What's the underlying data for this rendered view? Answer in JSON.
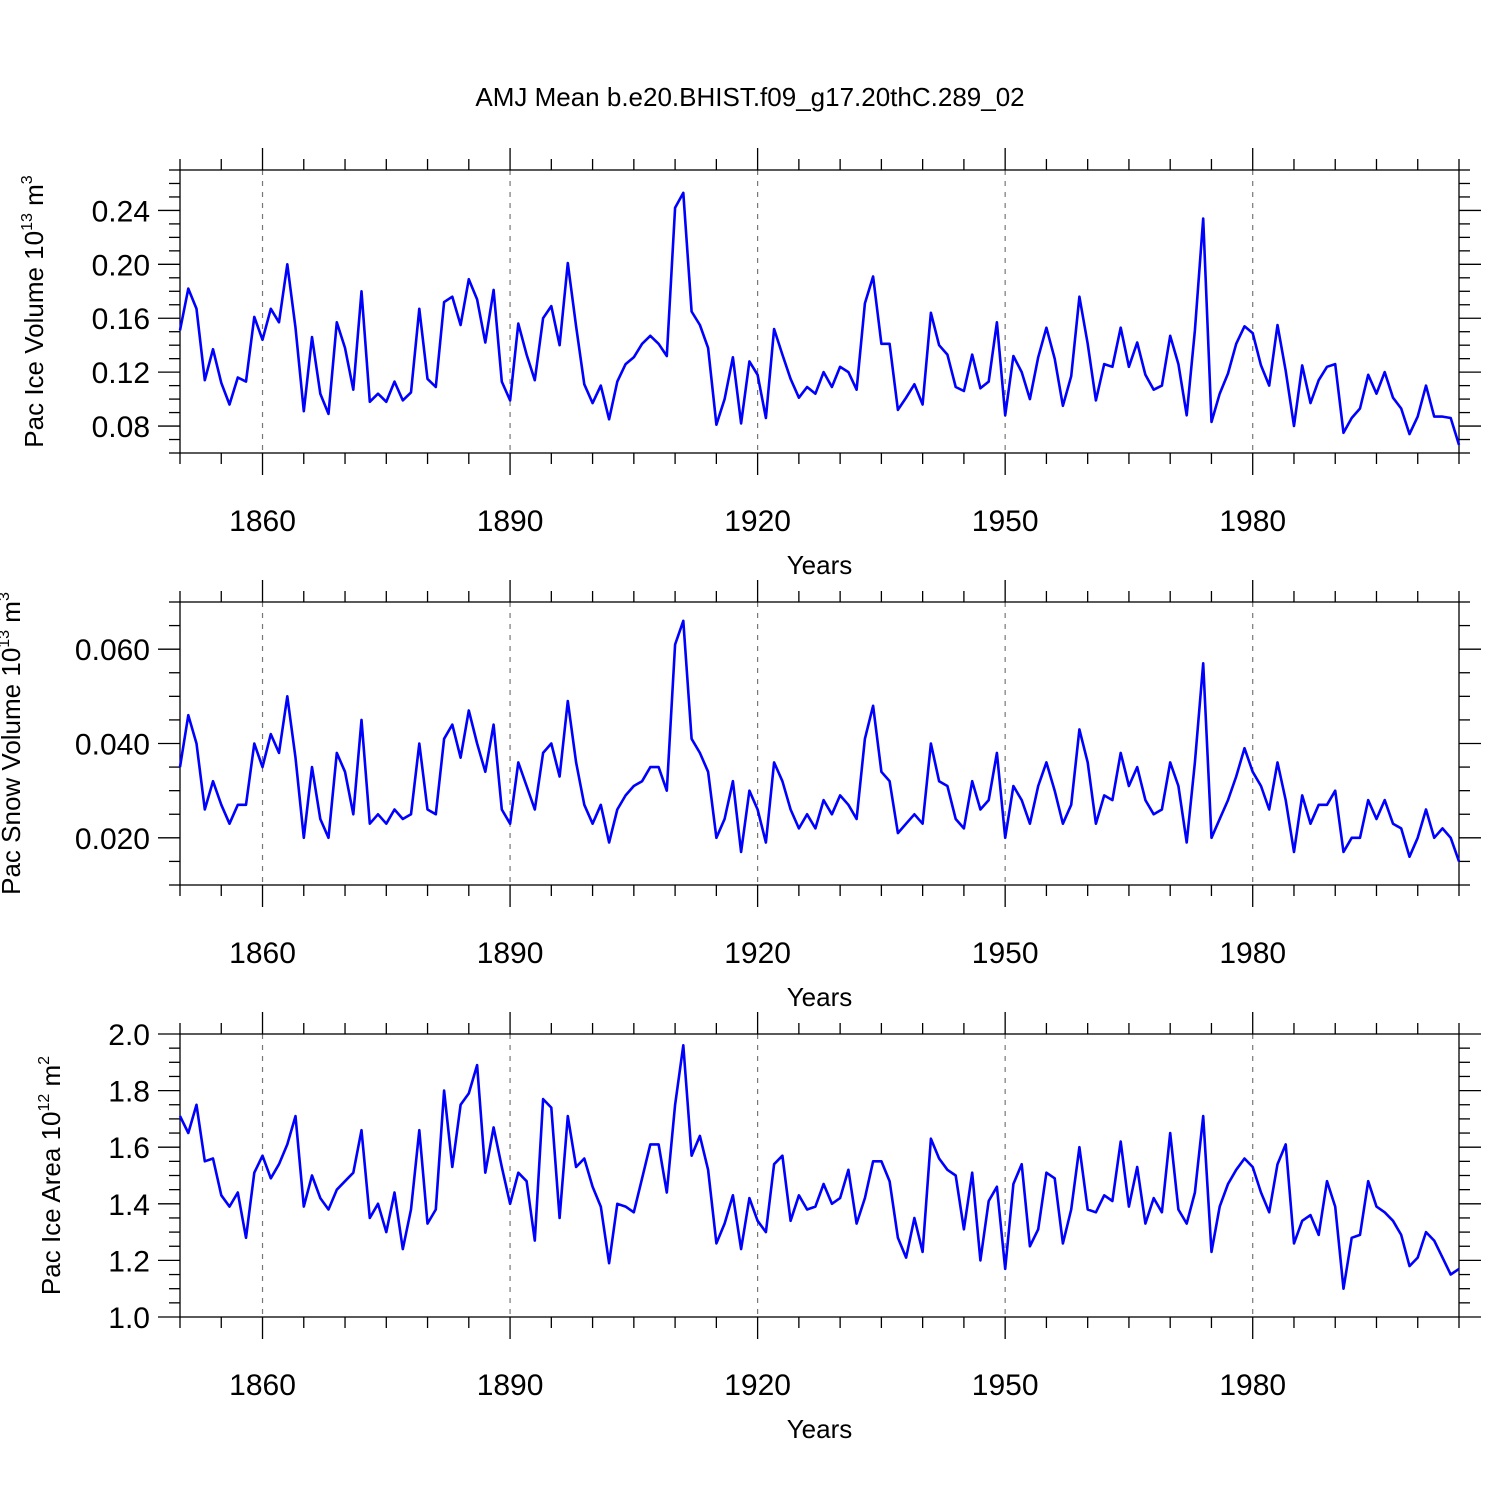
{
  "title": "AMJ Mean b.e20.BHIST.f09_g17.20thC.289_02",
  "chart_data": [
    {
      "type": "line",
      "name": "pac-ice-volume",
      "title": "AMJ Mean b.e20.BHIST.f09_g17.20thC.289_02",
      "xlabel": "Years",
      "ylabel": "Pac Ice Volume 10",
      "ylabel_exp": "13",
      "ylabel_unit": " m",
      "ylabel_unit_exp": "3",
      "xlim": [
        1850,
        2005
      ],
      "ylim": [
        0.06,
        0.27
      ],
      "xticks": [
        1860,
        1890,
        1920,
        1950,
        1980
      ],
      "xtick_labels": [
        "1860",
        "1890",
        "1920",
        "1950",
        "1980"
      ],
      "yticks": [
        0.08,
        0.12,
        0.16,
        0.2,
        0.24
      ],
      "ytick_labels": [
        "0.08",
        "0.12",
        "0.16",
        "0.20",
        "0.24"
      ],
      "grid": "vertical-dashed",
      "x_start": 1850,
      "values": [
        0.151,
        0.182,
        0.167,
        0.114,
        0.137,
        0.112,
        0.096,
        0.116,
        0.113,
        0.161,
        0.144,
        0.167,
        0.157,
        0.2,
        0.153,
        0.091,
        0.146,
        0.104,
        0.089,
        0.157,
        0.138,
        0.107,
        0.18,
        0.098,
        0.104,
        0.098,
        0.113,
        0.099,
        0.105,
        0.167,
        0.115,
        0.109,
        0.172,
        0.176,
        0.155,
        0.189,
        0.174,
        0.142,
        0.181,
        0.113,
        0.099,
        0.156,
        0.133,
        0.114,
        0.16,
        0.169,
        0.14,
        0.201,
        0.154,
        0.111,
        0.097,
        0.11,
        0.085,
        0.113,
        0.126,
        0.131,
        0.141,
        0.147,
        0.141,
        0.132,
        0.242,
        0.253,
        0.165,
        0.155,
        0.138,
        0.081,
        0.1,
        0.131,
        0.082,
        0.128,
        0.118,
        0.086,
        0.152,
        0.133,
        0.115,
        0.101,
        0.109,
        0.104,
        0.12,
        0.109,
        0.124,
        0.12,
        0.107,
        0.171,
        0.191,
        0.141,
        0.141,
        0.092,
        0.101,
        0.111,
        0.096,
        0.164,
        0.14,
        0.133,
        0.109,
        0.106,
        0.133,
        0.108,
        0.113,
        0.157,
        0.088,
        0.132,
        0.12,
        0.1,
        0.131,
        0.153,
        0.13,
        0.095,
        0.117,
        0.176,
        0.141,
        0.099,
        0.126,
        0.124,
        0.153,
        0.124,
        0.142,
        0.118,
        0.107,
        0.11,
        0.147,
        0.126,
        0.088,
        0.151,
        0.234,
        0.083,
        0.104,
        0.119,
        0.141,
        0.154,
        0.149,
        0.125,
        0.11,
        0.155,
        0.121,
        0.08,
        0.125,
        0.097,
        0.114,
        0.124,
        0.126,
        0.075,
        0.086,
        0.093,
        0.118,
        0.104,
        0.12,
        0.101,
        0.093,
        0.074,
        0.087,
        0.11,
        0.087,
        0.087,
        0.086,
        0.066
      ]
    },
    {
      "type": "line",
      "name": "pac-snow-volume",
      "xlabel": "Years",
      "ylabel": "Pac Snow Volume 10",
      "ylabel_exp": "13",
      "ylabel_unit": " m",
      "ylabel_unit_exp": "3",
      "xlim": [
        1850,
        2005
      ],
      "ylim": [
        0.01,
        0.07
      ],
      "xticks": [
        1860,
        1890,
        1920,
        1950,
        1980
      ],
      "xtick_labels": [
        "1860",
        "1890",
        "1920",
        "1950",
        "1980"
      ],
      "yticks": [
        0.02,
        0.04,
        0.06
      ],
      "ytick_labels": [
        "0.020",
        "0.040",
        "0.060"
      ],
      "grid": "vertical-dashed",
      "x_start": 1850,
      "values": [
        0.035,
        0.046,
        0.04,
        0.026,
        0.032,
        0.027,
        0.023,
        0.027,
        0.027,
        0.04,
        0.035,
        0.042,
        0.038,
        0.05,
        0.037,
        0.02,
        0.035,
        0.024,
        0.02,
        0.038,
        0.034,
        0.025,
        0.045,
        0.023,
        0.025,
        0.023,
        0.026,
        0.024,
        0.025,
        0.04,
        0.026,
        0.025,
        0.041,
        0.044,
        0.037,
        0.047,
        0.04,
        0.034,
        0.044,
        0.026,
        0.023,
        0.036,
        0.031,
        0.026,
        0.038,
        0.04,
        0.033,
        0.049,
        0.036,
        0.027,
        0.023,
        0.027,
        0.019,
        0.026,
        0.029,
        0.031,
        0.032,
        0.035,
        0.035,
        0.03,
        0.061,
        0.066,
        0.041,
        0.038,
        0.034,
        0.02,
        0.024,
        0.032,
        0.017,
        0.03,
        0.026,
        0.019,
        0.036,
        0.032,
        0.026,
        0.022,
        0.025,
        0.022,
        0.028,
        0.025,
        0.029,
        0.027,
        0.024,
        0.041,
        0.048,
        0.034,
        0.032,
        0.021,
        0.023,
        0.025,
        0.023,
        0.04,
        0.032,
        0.031,
        0.024,
        0.022,
        0.032,
        0.026,
        0.028,
        0.038,
        0.02,
        0.031,
        0.028,
        0.023,
        0.031,
        0.036,
        0.03,
        0.023,
        0.027,
        0.043,
        0.036,
        0.023,
        0.029,
        0.028,
        0.038,
        0.031,
        0.035,
        0.028,
        0.025,
        0.026,
        0.036,
        0.031,
        0.019,
        0.036,
        0.057,
        0.02,
        0.024,
        0.028,
        0.033,
        0.039,
        0.034,
        0.031,
        0.026,
        0.036,
        0.028,
        0.017,
        0.029,
        0.023,
        0.027,
        0.027,
        0.03,
        0.017,
        0.02,
        0.02,
        0.028,
        0.024,
        0.028,
        0.023,
        0.022,
        0.016,
        0.02,
        0.026,
        0.02,
        0.022,
        0.02,
        0.015
      ]
    },
    {
      "type": "line",
      "name": "pac-ice-area",
      "xlabel": "Years",
      "ylabel": "Pac Ice Area 10",
      "ylabel_exp": "12",
      "ylabel_unit": " m",
      "ylabel_unit_exp": "2",
      "xlim": [
        1850,
        2005
      ],
      "ylim": [
        1.0,
        2.0
      ],
      "xticks": [
        1860,
        1890,
        1920,
        1950,
        1980
      ],
      "xtick_labels": [
        "1860",
        "1890",
        "1920",
        "1950",
        "1980"
      ],
      "yticks": [
        1.0,
        1.2,
        1.4,
        1.6,
        1.8,
        2.0
      ],
      "ytick_labels": [
        "1.0",
        "1.2",
        "1.4",
        "1.6",
        "1.8",
        "2.0"
      ],
      "grid": "vertical-dashed",
      "x_start": 1850,
      "values": [
        1.71,
        1.65,
        1.75,
        1.55,
        1.56,
        1.43,
        1.39,
        1.44,
        1.28,
        1.51,
        1.57,
        1.49,
        1.54,
        1.61,
        1.71,
        1.39,
        1.5,
        1.42,
        1.38,
        1.45,
        1.48,
        1.51,
        1.66,
        1.35,
        1.4,
        1.3,
        1.44,
        1.24,
        1.38,
        1.66,
        1.33,
        1.38,
        1.8,
        1.53,
        1.75,
        1.79,
        1.89,
        1.51,
        1.67,
        1.53,
        1.4,
        1.51,
        1.48,
        1.27,
        1.77,
        1.74,
        1.35,
        1.71,
        1.53,
        1.56,
        1.46,
        1.39,
        1.19,
        1.4,
        1.39,
        1.37,
        1.49,
        1.61,
        1.61,
        1.44,
        1.75,
        1.96,
        1.57,
        1.64,
        1.52,
        1.26,
        1.33,
        1.43,
        1.24,
        1.42,
        1.34,
        1.3,
        1.54,
        1.57,
        1.34,
        1.43,
        1.38,
        1.39,
        1.47,
        1.4,
        1.42,
        1.52,
        1.33,
        1.42,
        1.55,
        1.55,
        1.48,
        1.28,
        1.21,
        1.35,
        1.23,
        1.63,
        1.56,
        1.52,
        1.5,
        1.31,
        1.51,
        1.2,
        1.41,
        1.46,
        1.17,
        1.47,
        1.54,
        1.25,
        1.31,
        1.51,
        1.49,
        1.26,
        1.38,
        1.6,
        1.38,
        1.37,
        1.43,
        1.41,
        1.62,
        1.39,
        1.53,
        1.33,
        1.42,
        1.37,
        1.65,
        1.38,
        1.33,
        1.44,
        1.71,
        1.23,
        1.39,
        1.47,
        1.52,
        1.56,
        1.53,
        1.44,
        1.37,
        1.54,
        1.61,
        1.26,
        1.34,
        1.36,
        1.29,
        1.48,
        1.39,
        1.1,
        1.28,
        1.29,
        1.48,
        1.39,
        1.37,
        1.34,
        1.29,
        1.18,
        1.21,
        1.3,
        1.27,
        1.21,
        1.15,
        1.17
      ]
    }
  ]
}
